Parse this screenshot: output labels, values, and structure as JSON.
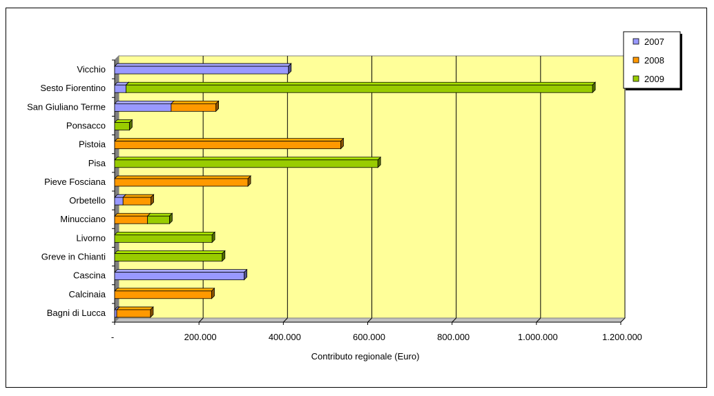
{
  "chart_data": {
    "type": "bar",
    "orientation": "horizontal",
    "stacked": true,
    "categories": [
      "Vicchio",
      "Sesto Fiorentino",
      "San Giuliano Terme",
      "Ponsacco",
      "Pistoia",
      "Pisa",
      "Pieve Fosciana",
      "Orbetello",
      "Minucciano",
      "Livorno",
      "Greve in Chianti",
      "Cascina",
      "Calcinaia",
      "Bagni di Lucca"
    ],
    "series": [
      {
        "name": "2007",
        "color": "#9999ff",
        "values": [
          412000,
          27000,
          134000,
          0,
          0,
          0,
          0,
          20000,
          0,
          0,
          0,
          307000,
          0,
          5000
        ]
      },
      {
        "name": "2008",
        "color": "#ff9900",
        "values": [
          0,
          0,
          106000,
          0,
          536000,
          0,
          316000,
          66000,
          78000,
          0,
          0,
          0,
          230000,
          80000
        ]
      },
      {
        "name": "2009",
        "color": "#99cc00",
        "values": [
          0,
          1106000,
          0,
          35000,
          0,
          624000,
          0,
          0,
          52000,
          231000,
          255000,
          0,
          0,
          0
        ]
      }
    ],
    "xlabel": "Contributo regionale (Euro)",
    "xlim": [
      0,
      1200000
    ],
    "xticks": [
      {
        "value": 0,
        "label": "-"
      },
      {
        "value": 200000,
        "label": "200.000"
      },
      {
        "value": 400000,
        "label": "400.000"
      },
      {
        "value": 600000,
        "label": "600.000"
      },
      {
        "value": 800000,
        "label": "800.000"
      },
      {
        "value": 1000000,
        "label": "1.000.000"
      },
      {
        "value": 1200000,
        "label": "1.200.000"
      }
    ],
    "grid": true,
    "legend": "top-right",
    "plot_background": "#ffff99"
  }
}
